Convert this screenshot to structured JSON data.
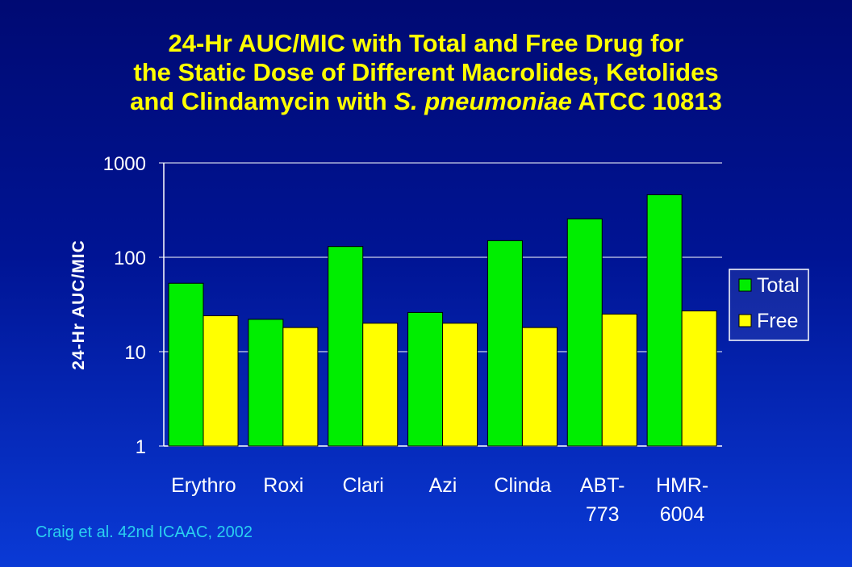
{
  "title": {
    "line1": "24-Hr AUC/MIC with Total and Free Drug for",
    "line2": "the Static Dose of Different Macrolides, Ketolides",
    "line3a": "and Clindamycin with ",
    "line3b": "S. pneumoniae",
    "line3c": " ATCC 10813"
  },
  "citation": "Craig et al.  42nd ICAAC, 2002",
  "colors": {
    "total": "#00ee00",
    "free": "#ffff00",
    "text": "#ffffff",
    "title": "#ffff00",
    "citation": "#2ad0f0"
  },
  "chart_data": {
    "type": "bar",
    "ylabel": "24-Hr AUC/MIC",
    "yscale": "log",
    "ylim": [
      1,
      1000
    ],
    "yticks": [
      1,
      10,
      100,
      1000
    ],
    "ytick_labels": [
      "1",
      "10",
      "100",
      "1000"
    ],
    "grid": "horizontal",
    "legend_position": "right",
    "categories": [
      [
        "Erythro"
      ],
      [
        "Roxi"
      ],
      [
        "Clari"
      ],
      [
        "Azi"
      ],
      [
        "Clinda"
      ],
      [
        "ABT-",
        "773"
      ],
      [
        "HMR-",
        "6004"
      ]
    ],
    "series": [
      {
        "name": "Total",
        "values": [
          53,
          22,
          130,
          26,
          150,
          255,
          460
        ]
      },
      {
        "name": "Free",
        "values": [
          24,
          18,
          20,
          20,
          18,
          25,
          27
        ]
      }
    ]
  }
}
